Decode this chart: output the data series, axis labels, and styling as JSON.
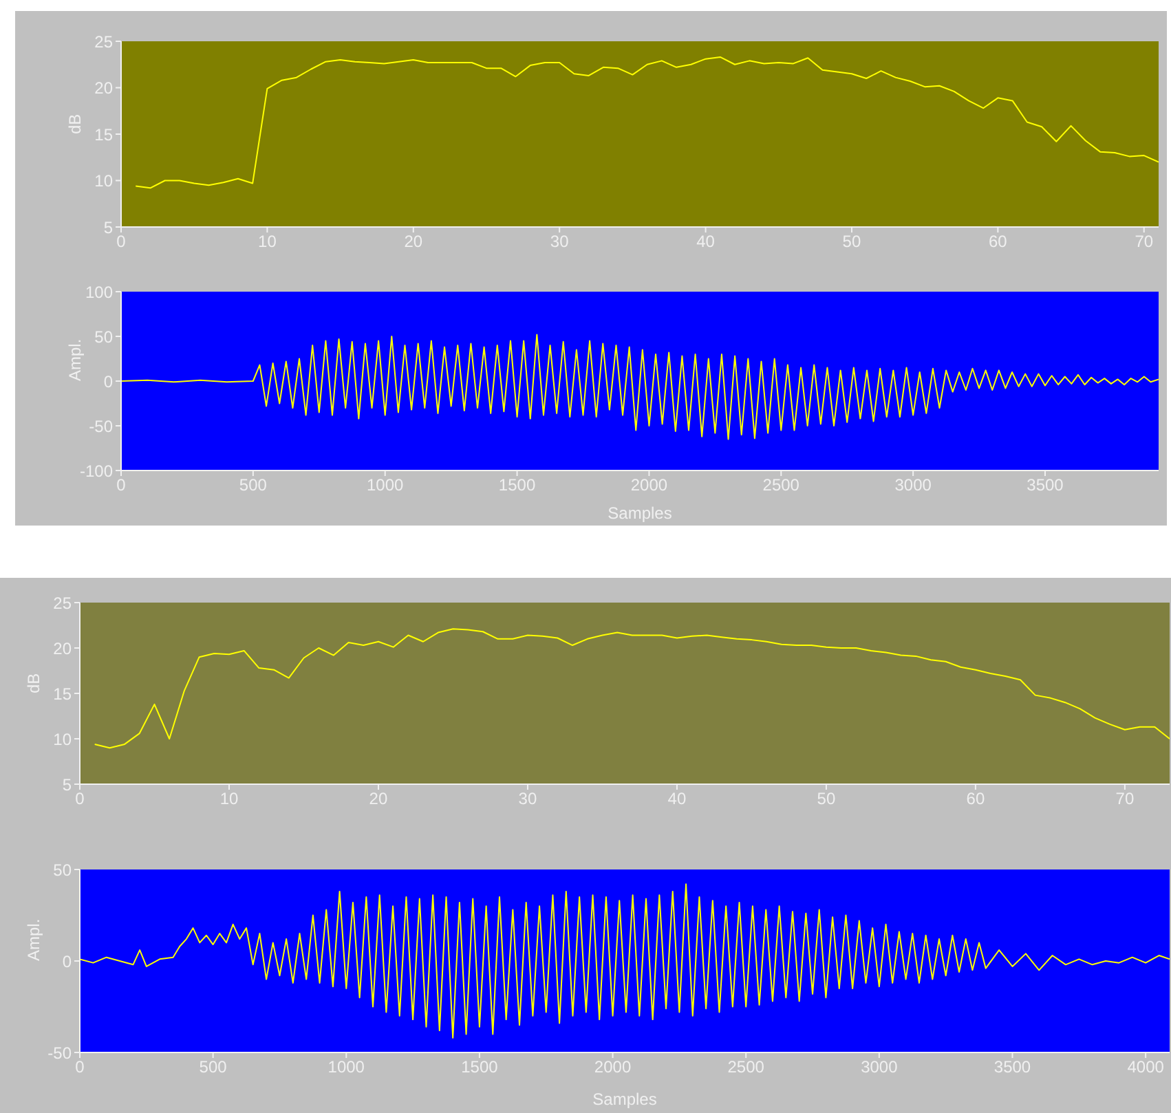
{
  "chart_data": [
    {
      "type": "line",
      "ylabel": "dB",
      "xlim": [
        0,
        71
      ],
      "xticks": [
        0,
        10,
        20,
        30,
        40,
        50,
        60,
        70
      ],
      "ylim": [
        5,
        25
      ],
      "yticks": [
        5,
        10,
        15,
        20,
        25
      ],
      "grid": false,
      "marker": "none",
      "series": [
        {
          "color": "#ffff00",
          "x": [
            1,
            2,
            3,
            4,
            5,
            6,
            7,
            8,
            9,
            10,
            11,
            12,
            13,
            14,
            15,
            16,
            17,
            18,
            19,
            20,
            21,
            22,
            23,
            24,
            25,
            26,
            27,
            28,
            29,
            30,
            31,
            32,
            33,
            34,
            35,
            36,
            37,
            38,
            39,
            40,
            41,
            42,
            43,
            44,
            45,
            46,
            47,
            48,
            49,
            50,
            51,
            52,
            53,
            54,
            55,
            56,
            57,
            58,
            59,
            60,
            61,
            62,
            63,
            64,
            65,
            66,
            67,
            68,
            69,
            70,
            71
          ],
          "values": [
            9.4,
            9.2,
            10,
            10,
            9.7,
            9.5,
            9.8,
            10.2,
            9.7,
            19.9,
            20.8,
            21.1,
            22,
            22.8,
            23,
            22.8,
            22.7,
            22.6,
            22.8,
            23,
            22.7,
            22.7,
            22.7,
            22.7,
            22.1,
            22.1,
            21.2,
            22.4,
            22.7,
            22.7,
            21.5,
            21.3,
            22.2,
            22.1,
            21.4,
            22.5,
            22.9,
            22.2,
            22.5,
            23.1,
            23.3,
            22.5,
            22.9,
            22.6,
            22.7,
            22.6,
            23.2,
            21.9,
            21.7,
            21.5,
            21,
            21.8,
            21.1,
            20.7,
            20.1,
            20.2,
            19.6,
            18.6,
            17.8,
            18.9,
            18.6,
            16.3,
            15.8,
            14.2,
            15.9,
            14.3,
            13.1,
            13,
            12.6,
            12.7,
            12
          ]
        }
      ]
    },
    {
      "type": "line",
      "xlabel": "Samples",
      "ylabel": "Ampl.",
      "xlim": [
        0,
        3930
      ],
      "xticks": [
        0,
        500,
        1000,
        1500,
        2000,
        2500,
        3000,
        3500
      ],
      "ylim": [
        -100,
        100
      ],
      "yticks": [
        -100,
        -50,
        0,
        50,
        100
      ],
      "grid": false,
      "marker": "none",
      "series": [
        {
          "color": "#ffff00",
          "x": [
            0,
            100,
            200,
            300,
            400,
            500,
            525,
            550,
            575,
            600,
            625,
            650,
            675,
            700,
            725,
            750,
            775,
            800,
            825,
            850,
            875,
            900,
            925,
            950,
            975,
            1000,
            1025,
            1050,
            1075,
            1100,
            1125,
            1150,
            1175,
            1200,
            1225,
            1250,
            1275,
            1300,
            1325,
            1350,
            1375,
            1400,
            1425,
            1450,
            1475,
            1500,
            1525,
            1550,
            1575,
            1600,
            1625,
            1650,
            1675,
            1700,
            1725,
            1750,
            1775,
            1800,
            1825,
            1850,
            1875,
            1900,
            1925,
            1950,
            1975,
            2000,
            2025,
            2050,
            2075,
            2100,
            2125,
            2150,
            2175,
            2200,
            2225,
            2250,
            2275,
            2300,
            2325,
            2350,
            2375,
            2400,
            2425,
            2450,
            2475,
            2500,
            2525,
            2550,
            2575,
            2600,
            2625,
            2650,
            2675,
            2700,
            2725,
            2750,
            2775,
            2800,
            2825,
            2850,
            2875,
            2900,
            2925,
            2950,
            2975,
            3000,
            3025,
            3050,
            3075,
            3100,
            3125,
            3150,
            3175,
            3200,
            3225,
            3250,
            3275,
            3300,
            3325,
            3350,
            3375,
            3400,
            3425,
            3450,
            3475,
            3500,
            3525,
            3550,
            3575,
            3600,
            3625,
            3650,
            3675,
            3700,
            3725,
            3750,
            3775,
            3800,
            3825,
            3850,
            3875,
            3900,
            3930
          ],
          "values": [
            0,
            1,
            -1,
            1,
            -1,
            0,
            18,
            -28,
            20,
            -25,
            22,
            -30,
            25,
            -38,
            40,
            -35,
            45,
            -38,
            47,
            -30,
            44,
            -42,
            42,
            -30,
            45,
            -38,
            50,
            -35,
            40,
            -32,
            42,
            -30,
            45,
            -36,
            38,
            -28,
            40,
            -33,
            42,
            -30,
            38,
            -36,
            40,
            -34,
            45,
            -40,
            45,
            -42,
            52,
            -38,
            40,
            -36,
            44,
            -40,
            35,
            -38,
            45,
            -40,
            42,
            -32,
            40,
            -38,
            38,
            -55,
            35,
            -50,
            30,
            -48,
            32,
            -56,
            28,
            -55,
            30,
            -62,
            25,
            -58,
            30,
            -65,
            28,
            -60,
            25,
            -64,
            22,
            -58,
            25,
            -55,
            18,
            -55,
            15,
            -50,
            18,
            -48,
            15,
            -50,
            12,
            -46,
            15,
            -42,
            12,
            -45,
            14,
            -40,
            12,
            -40,
            15,
            -38,
            10,
            -36,
            14,
            -30,
            12,
            -12,
            10,
            -10,
            14,
            -8,
            12,
            -10,
            12,
            -8,
            10,
            -6,
            8,
            -6,
            8,
            -5,
            6,
            -4,
            5,
            -3,
            7,
            -4,
            4,
            -2,
            3,
            -3,
            2,
            -4,
            3,
            -1,
            5,
            -1,
            2
          ]
        }
      ]
    },
    {
      "type": "line",
      "ylabel": "dB",
      "xlim": [
        0,
        73
      ],
      "xticks": [
        0,
        10,
        20,
        30,
        40,
        50,
        60,
        70
      ],
      "ylim": [
        5,
        25
      ],
      "yticks": [
        5,
        10,
        15,
        20,
        25
      ],
      "grid": false,
      "marker": "none",
      "series": [
        {
          "color": "#ffff00",
          "x": [
            1,
            2,
            3,
            4,
            5,
            6,
            7,
            8,
            9,
            10,
            11,
            12,
            13,
            14,
            15,
            16,
            17,
            18,
            19,
            20,
            21,
            22,
            23,
            24,
            25,
            26,
            27,
            28,
            29,
            30,
            31,
            32,
            33,
            34,
            35,
            36,
            37,
            38,
            39,
            40,
            41,
            42,
            43,
            44,
            45,
            46,
            47,
            48,
            49,
            50,
            51,
            52,
            53,
            54,
            55,
            56,
            57,
            58,
            59,
            60,
            61,
            62,
            63,
            64,
            65,
            66,
            67,
            68,
            69,
            70,
            71,
            72,
            73
          ],
          "values": [
            9.4,
            9,
            9.4,
            10.6,
            13.8,
            10,
            15.3,
            19,
            19.4,
            19.3,
            19.7,
            17.8,
            17.6,
            16.7,
            18.9,
            20,
            19.2,
            20.6,
            20.3,
            20.7,
            20.1,
            21.4,
            20.7,
            21.7,
            22.1,
            22,
            21.8,
            21,
            21,
            21.4,
            21.3,
            21.1,
            20.3,
            21,
            21.4,
            21.7,
            21.4,
            21.4,
            21.4,
            21.1,
            21.3,
            21.4,
            21.2,
            21,
            20.9,
            20.7,
            20.4,
            20.3,
            20.3,
            20.1,
            20,
            20,
            19.7,
            19.5,
            19.2,
            19.1,
            18.7,
            18.5,
            17.9,
            17.6,
            17.2,
            16.9,
            16.5,
            14.8,
            14.5,
            14,
            13.3,
            12.3,
            11.6,
            11,
            11.3,
            11.3,
            10
          ]
        }
      ]
    },
    {
      "type": "line",
      "xlabel": "Samples",
      "ylabel": "Ampl.",
      "xlim": [
        0,
        4090
      ],
      "xticks": [
        0,
        500,
        1000,
        1500,
        2000,
        2500,
        3000,
        3500,
        4000
      ],
      "ylim": [
        -50,
        50
      ],
      "yticks": [
        -50,
        0,
        50
      ],
      "grid": false,
      "marker": "none",
      "series": [
        {
          "color": "#ffff00",
          "x": [
            0,
            50,
            100,
            150,
            200,
            225,
            250,
            300,
            350,
            375,
            400,
            425,
            450,
            475,
            500,
            525,
            550,
            575,
            600,
            625,
            650,
            675,
            700,
            725,
            750,
            775,
            800,
            825,
            850,
            875,
            900,
            925,
            950,
            975,
            1000,
            1025,
            1050,
            1075,
            1100,
            1125,
            1150,
            1175,
            1200,
            1225,
            1250,
            1275,
            1300,
            1325,
            1350,
            1375,
            1400,
            1425,
            1450,
            1475,
            1500,
            1525,
            1550,
            1575,
            1600,
            1625,
            1650,
            1675,
            1700,
            1725,
            1750,
            1775,
            1800,
            1825,
            1850,
            1875,
            1900,
            1925,
            1950,
            1975,
            2000,
            2025,
            2050,
            2075,
            2100,
            2125,
            2150,
            2175,
            2200,
            2225,
            2250,
            2275,
            2300,
            2325,
            2350,
            2375,
            2400,
            2425,
            2450,
            2475,
            2500,
            2525,
            2550,
            2575,
            2600,
            2625,
            2650,
            2675,
            2700,
            2725,
            2750,
            2775,
            2800,
            2825,
            2850,
            2875,
            2900,
            2925,
            2950,
            2975,
            3000,
            3025,
            3050,
            3075,
            3100,
            3125,
            3150,
            3175,
            3200,
            3225,
            3250,
            3275,
            3300,
            3325,
            3350,
            3375,
            3400,
            3450,
            3500,
            3550,
            3600,
            3650,
            3700,
            3750,
            3800,
            3850,
            3900,
            3950,
            4000,
            4050,
            4090
          ],
          "values": [
            1,
            -1,
            2,
            0,
            -2,
            6,
            -3,
            1,
            2,
            8,
            12,
            18,
            10,
            14,
            9,
            15,
            10,
            20,
            12,
            18,
            -2,
            15,
            -10,
            10,
            -8,
            12,
            -12,
            15,
            -10,
            25,
            -12,
            28,
            -14,
            38,
            -15,
            32,
            -20,
            35,
            -25,
            36,
            -28,
            30,
            -30,
            35,
            -32,
            34,
            -36,
            36,
            -38,
            35,
            -42,
            32,
            -40,
            34,
            -36,
            30,
            -40,
            35,
            -32,
            28,
            -35,
            32,
            -30,
            30,
            -28,
            36,
            -34,
            38,
            -30,
            35,
            -28,
            36,
            -32,
            35,
            -30,
            33,
            -28,
            36,
            -30,
            34,
            -32,
            36,
            -26,
            38,
            -28,
            42,
            -30,
            35,
            -26,
            33,
            -28,
            30,
            -25,
            32,
            -25,
            30,
            -24,
            28,
            -22,
            30,
            -20,
            27,
            -22,
            26,
            -18,
            28,
            -20,
            24,
            -15,
            25,
            -15,
            22,
            -12,
            18,
            -14,
            20,
            -12,
            16,
            -10,
            15,
            -12,
            14,
            -10,
            12,
            -8,
            14,
            -6,
            12,
            -5,
            10,
            -4,
            6,
            -3,
            4,
            -5,
            3,
            -2,
            1,
            -2,
            0,
            -1,
            2,
            -1,
            3,
            1
          ]
        }
      ]
    }
  ]
}
